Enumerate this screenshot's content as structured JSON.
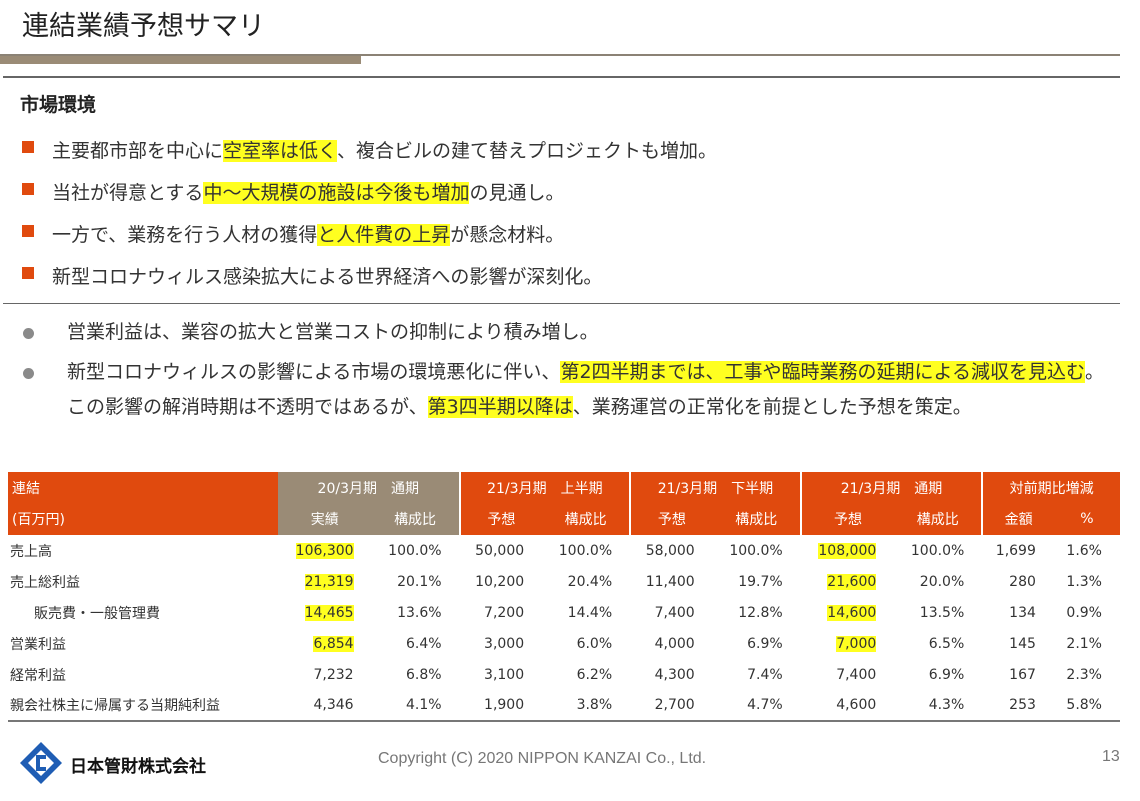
{
  "title": "連結業績予想サマリ",
  "section_heading": "市場環境",
  "square_bullets": [
    [
      {
        "t": "主要都市部を中心に"
      },
      {
        "t": "空室率は低く",
        "hl": true
      },
      {
        "t": "、複合ビルの建て替えプロジェクトも増加。"
      }
    ],
    [
      {
        "t": "当社が得意とする"
      },
      {
        "t": "中～大規模の施設は今後も増加",
        "hl": true
      },
      {
        "t": "の見通し。"
      }
    ],
    [
      {
        "t": "一方で、業務を行う人材の獲得"
      },
      {
        "t": "と人件費の上昇",
        "hl": true
      },
      {
        "t": "が懸念材料。"
      }
    ],
    [
      {
        "t": "新型コロナウィルス感染拡大による世界経済への影響が深刻化。"
      }
    ]
  ],
  "circle_bullets": [
    [
      {
        "t": "営業利益は、業容の拡大と営業コストの抑制により積み増し。"
      }
    ],
    [
      {
        "t": "新型コロナウィルスの影響による市場の環境悪化に伴い、"
      },
      {
        "t": "第2四半期までは、工事や臨時業務の延期による減収を見込む",
        "hl": true
      },
      {
        "t": "。この影響の解消時期は不透明ではあるが、"
      },
      {
        "t": "第3四半期以降は",
        "hl": true
      },
      {
        "t": "、業務運営の正常化を前提とした予想を策定。"
      }
    ]
  ],
  "table": {
    "corner1": "連結",
    "corner2": "(百万円)",
    "groups": [
      "20/3月期　通期",
      "21/3月期　上半期",
      "21/3月期　下半期",
      "21/3月期　通期",
      "対前期比増減"
    ],
    "subheaders": [
      "実績",
      "構成比",
      "予想",
      "構成比",
      "予想",
      "構成比",
      "予想",
      "構成比",
      "金額",
      "%"
    ],
    "rows": [
      {
        "label": "売上高",
        "values": [
          "106,300",
          "100.0%",
          "50,000",
          "100.0%",
          "58,000",
          "100.0%",
          "108,000",
          "100.0%",
          "1,699",
          "1.6%"
        ],
        "hl": [
          0,
          6
        ]
      },
      {
        "label": "売上総利益",
        "values": [
          "21,319",
          "20.1%",
          "10,200",
          "20.4%",
          "11,400",
          "19.7%",
          "21,600",
          "20.0%",
          "280",
          "1.3%"
        ],
        "hl": [
          0,
          6
        ]
      },
      {
        "label": "販売費・一般管理費",
        "indent": true,
        "values": [
          "14,465",
          "13.6%",
          "7,200",
          "14.4%",
          "7,400",
          "12.8%",
          "14,600",
          "13.5%",
          "134",
          "0.9%"
        ],
        "hl": [
          0,
          6
        ]
      },
      {
        "label": "営業利益",
        "values": [
          "6,854",
          "6.4%",
          "3,000",
          "6.0%",
          "4,000",
          "6.9%",
          "7,000",
          "6.5%",
          "145",
          "2.1%"
        ],
        "hl": [
          0,
          6
        ]
      },
      {
        "label": "経常利益",
        "values": [
          "7,232",
          "6.8%",
          "3,100",
          "6.2%",
          "4,300",
          "7.4%",
          "7,400",
          "6.9%",
          "167",
          "2.3%"
        ],
        "hl": []
      },
      {
        "label": "親会社株主に帰属する当期純利益",
        "values": [
          "4,346",
          "4.1%",
          "1,900",
          "3.8%",
          "2,700",
          "4.7%",
          "4,600",
          "4.3%",
          "253",
          "5.8%"
        ],
        "hl": []
      }
    ]
  },
  "footer": {
    "company": "日本管財株式会社",
    "copyright": "Copyright (C) 2020 NIPPON KANZAI Co., Ltd.",
    "page": "13"
  },
  "colors": {
    "accent": "#e04a0e",
    "brown": "#9a8b76",
    "highlight": "#ffff20",
    "logo_blue": "#1f5db4"
  }
}
